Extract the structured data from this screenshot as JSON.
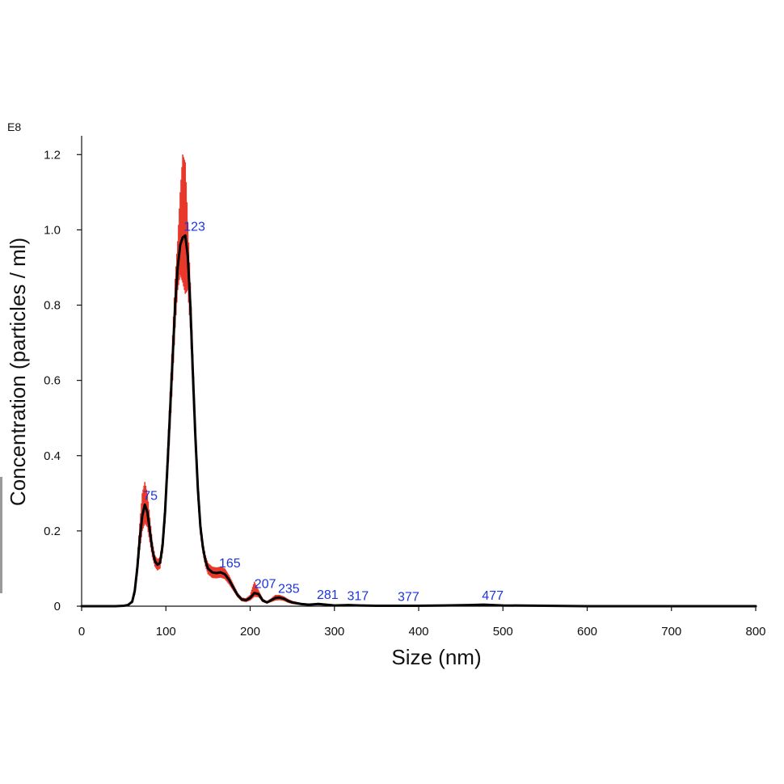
{
  "chart_data": {
    "type": "line",
    "xlabel": "Size (nm)",
    "ylabel": "Concentration (particles / ml)",
    "y_exponent_label": "E8",
    "y_scale": 100000000,
    "xlim": [
      0,
      800
    ],
    "ylim": [
      0,
      1.25
    ],
    "x_ticks": [
      0,
      100,
      200,
      300,
      400,
      500,
      600,
      700,
      800
    ],
    "x_tick_labels": [
      "0",
      "100",
      "200",
      "300",
      "400",
      "500",
      "600",
      "700",
      "800"
    ],
    "y_ticks": [
      0,
      0.2,
      0.4,
      0.6,
      0.8,
      1.0,
      1.2
    ],
    "y_tick_labels": [
      "0",
      "0.2",
      "0.4",
      "0.6",
      "0.8",
      "1.0",
      "1.2"
    ],
    "grid": false,
    "colors": {
      "mean": "#000000",
      "error": "#e8392b",
      "peak_labels": "#1a35e0"
    },
    "series": [
      {
        "role": "mean",
        "x": [
          0,
          40,
          50,
          55,
          60,
          63,
          66,
          69,
          72,
          75,
          78,
          81,
          84,
          87,
          90,
          93,
          96,
          99,
          102,
          105,
          108,
          111,
          114,
          117,
          120,
          123,
          126,
          129,
          132,
          135,
          138,
          141,
          144,
          147,
          150,
          155,
          160,
          165,
          170,
          175,
          180,
          185,
          190,
          195,
          200,
          205,
          210,
          215,
          220,
          225,
          230,
          235,
          240,
          245,
          250,
          260,
          270,
          281,
          290,
          300,
          317,
          330,
          350,
          377,
          400,
          430,
          460,
          477,
          500,
          550,
          600,
          700,
          800
        ],
        "y": [
          0,
          0,
          0.001,
          0.003,
          0.012,
          0.04,
          0.1,
          0.18,
          0.24,
          0.27,
          0.25,
          0.2,
          0.15,
          0.12,
          0.11,
          0.115,
          0.16,
          0.25,
          0.38,
          0.52,
          0.66,
          0.8,
          0.9,
          0.96,
          0.98,
          0.985,
          0.93,
          0.8,
          0.62,
          0.45,
          0.31,
          0.21,
          0.155,
          0.12,
          0.1,
          0.09,
          0.088,
          0.09,
          0.085,
          0.07,
          0.05,
          0.03,
          0.018,
          0.016,
          0.022,
          0.035,
          0.032,
          0.015,
          0.01,
          0.016,
          0.022,
          0.023,
          0.02,
          0.014,
          0.01,
          0.006,
          0.004,
          0.006,
          0.004,
          0.002,
          0.003,
          0.002,
          0.001,
          0.001,
          0.001,
          0.002,
          0.003,
          0.004,
          0.002,
          0.001,
          0,
          0,
          0
        ]
      },
      {
        "role": "error",
        "x": [
          0,
          40,
          50,
          55,
          60,
          63,
          66,
          69,
          72,
          75,
          78,
          81,
          84,
          87,
          90,
          93,
          96,
          99,
          102,
          105,
          108,
          111,
          114,
          117,
          120,
          123,
          126,
          129,
          132,
          135,
          138,
          141,
          144,
          147,
          150,
          155,
          160,
          165,
          170,
          175,
          180,
          185,
          190,
          195,
          200,
          205,
          210,
          215,
          220,
          225,
          230,
          235,
          240,
          245,
          250,
          260,
          270,
          281,
          290,
          300,
          317,
          330,
          350,
          377,
          400,
          430,
          460,
          477,
          500,
          550,
          600,
          700,
          800
        ],
        "lower": [
          0,
          0,
          0.0,
          0.002,
          0.008,
          0.03,
          0.08,
          0.15,
          0.2,
          0.22,
          0.21,
          0.17,
          0.13,
          0.105,
          0.095,
          0.1,
          0.14,
          0.22,
          0.34,
          0.47,
          0.6,
          0.74,
          0.84,
          0.88,
          0.86,
          0.83,
          0.84,
          0.74,
          0.57,
          0.41,
          0.28,
          0.19,
          0.14,
          0.105,
          0.085,
          0.075,
          0.074,
          0.076,
          0.072,
          0.058,
          0.041,
          0.024,
          0.013,
          0.011,
          0.015,
          0.025,
          0.024,
          0.011,
          0.007,
          0.011,
          0.015,
          0.016,
          0.014,
          0.009,
          0.006,
          0.003,
          0.002,
          0.003,
          0.002,
          0.001,
          0.001,
          0.001,
          0.0,
          0.0,
          0.0,
          0.001,
          0.001,
          0.002,
          0.001,
          0.0,
          0,
          0,
          0
        ],
        "upper": [
          0,
          0,
          0.002,
          0.005,
          0.016,
          0.05,
          0.125,
          0.22,
          0.3,
          0.33,
          0.3,
          0.235,
          0.17,
          0.135,
          0.125,
          0.13,
          0.18,
          0.28,
          0.42,
          0.57,
          0.72,
          0.87,
          0.97,
          1.1,
          1.2,
          1.18,
          1.02,
          0.86,
          0.67,
          0.49,
          0.34,
          0.23,
          0.17,
          0.135,
          0.115,
          0.105,
          0.103,
          0.105,
          0.1,
          0.082,
          0.059,
          0.036,
          0.023,
          0.021,
          0.03,
          0.065,
          0.042,
          0.02,
          0.013,
          0.021,
          0.03,
          0.03,
          0.026,
          0.019,
          0.014,
          0.009,
          0.006,
          0.009,
          0.006,
          0.003,
          0.005,
          0.003,
          0.002,
          0.002,
          0.002,
          0.003,
          0.004,
          0.006,
          0.003,
          0.001,
          0,
          0,
          0
        ]
      }
    ],
    "peaks": [
      {
        "label": "75",
        "x": 75,
        "y": 0.27
      },
      {
        "label": "123",
        "x": 123,
        "y": 0.985
      },
      {
        "label": "165",
        "x": 165,
        "y": 0.09
      },
      {
        "label": "207",
        "x": 207,
        "y": 0.035
      },
      {
        "label": "235",
        "x": 235,
        "y": 0.023
      },
      {
        "label": "281",
        "x": 281,
        "y": 0.006
      },
      {
        "label": "317",
        "x": 317,
        "y": 0.003
      },
      {
        "label": "377",
        "x": 377,
        "y": 0.001
      },
      {
        "label": "477",
        "x": 477,
        "y": 0.004
      }
    ]
  }
}
